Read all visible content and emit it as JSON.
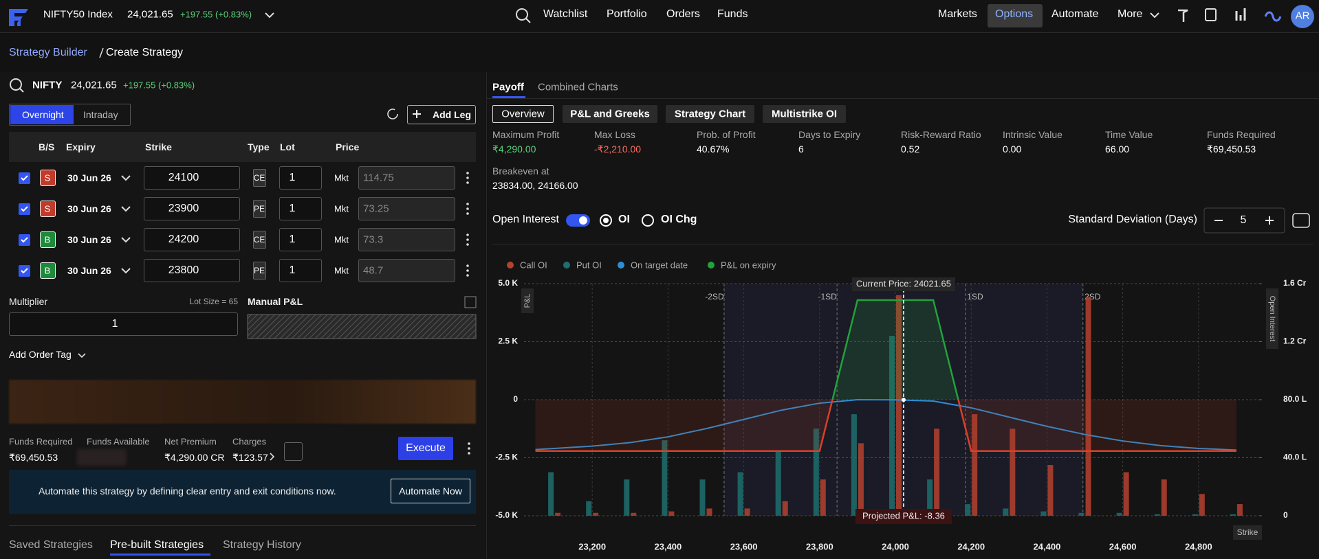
{
  "header": {
    "index_name": "NIFTY50 Index",
    "price": "24,021.65",
    "change": "+197.55 (+0.83%)",
    "nav": [
      "Watchlist",
      "Portfolio",
      "Orders",
      "Funds"
    ],
    "right_nav": [
      "Markets",
      "Options",
      "Automate",
      "More"
    ],
    "avatar": "AR"
  },
  "breadcrumb": [
    "Strategy Builder",
    "Create Strategy"
  ],
  "builder": {
    "symbol": "NIFTY",
    "price": "24,021.65",
    "change": "+197.55 (+0.83%)",
    "modes": [
      "Overnight",
      "Intraday"
    ],
    "add_leg": "Add Leg",
    "columns": [
      "B/S",
      "Expiry",
      "Strike",
      "Type",
      "Lot",
      "Price"
    ],
    "legs": [
      {
        "side": "S",
        "expiry": "30 Jun 26",
        "strike": "24100",
        "type": "CE",
        "lot": "1",
        "order": "Mkt",
        "price": "114.75"
      },
      {
        "side": "S",
        "expiry": "30 Jun 26",
        "strike": "23900",
        "type": "PE",
        "lot": "1",
        "order": "Mkt",
        "price": "73.25"
      },
      {
        "side": "B",
        "expiry": "30 Jun 26",
        "strike": "24200",
        "type": "CE",
        "lot": "1",
        "order": "Mkt",
        "price": "73.3"
      },
      {
        "side": "B",
        "expiry": "30 Jun 26",
        "strike": "23800",
        "type": "PE",
        "lot": "1",
        "order": "Mkt",
        "price": "48.7"
      }
    ],
    "multiplier_label": "Multiplier",
    "lot_size": "Lot Size = 65",
    "multiplier": "1",
    "manual_pnl": "Manual P&L",
    "order_tag": "Add Order Tag",
    "summary": [
      {
        "label": "Funds Required",
        "value": "₹69,450.53"
      },
      {
        "label": "Funds Available"
      },
      {
        "label": "Net Premium",
        "value": "₹4,290.00 CR"
      },
      {
        "label": "Charges",
        "value": "₹123.57"
      }
    ],
    "execute": "Execute",
    "automate_text": "Automate this strategy by defining clear entry and exit conditions now.",
    "automate_button": "Automate Now",
    "bottom_tabs": [
      "Saved Strategies",
      "Pre-built Strategies",
      "Strategy History"
    ]
  },
  "payoff": {
    "tabs": [
      "Payoff",
      "Combined Charts"
    ],
    "views": [
      "Overview",
      "P&L and Greeks",
      "Strategy Chart",
      "Multistrike OI"
    ],
    "metrics": [
      {
        "label": "Maximum Profit",
        "value": "₹4,290.00"
      },
      {
        "label": "Max Loss",
        "value": "-₹2,210.00"
      },
      {
        "label": "Prob. of Profit",
        "value": "40.67%"
      },
      {
        "label": "Days to Expiry",
        "value": "6"
      },
      {
        "label": "Risk-Reward Ratio",
        "value": "0.52"
      },
      {
        "label": "Intrinsic Value",
        "value": "0.00"
      },
      {
        "label": "Time Value",
        "value": "66.00"
      },
      {
        "label": "Funds Required",
        "value": "₹69,450.53"
      }
    ],
    "breakeven_label": "Breakeven at",
    "breakeven": "23834.00, 24166.00",
    "oi_label": "Open Interest",
    "oi_options": [
      "OI",
      "OI Chg"
    ],
    "sd_label": "Standard Deviation (Days)",
    "sd_days": "5"
  },
  "chart_data": {
    "type": "combo",
    "x_label": "Strike",
    "y_label": "P&L",
    "y2_label": "Open Interest",
    "xlim": [
      23020,
      24960
    ],
    "xticks": [
      {
        "value": 23200,
        "label": "23,200"
      },
      {
        "value": 23400,
        "label": "23,400"
      },
      {
        "value": 23600,
        "label": "23,600"
      },
      {
        "value": 23800,
        "label": "23,800"
      },
      {
        "value": 24000,
        "label": "24,000"
      },
      {
        "value": 24200,
        "label": "24,200"
      },
      {
        "value": 24400,
        "label": "24,400"
      },
      {
        "value": 24600,
        "label": "24,600"
      },
      {
        "value": 24800,
        "label": "24,800"
      }
    ],
    "ylim": [
      -5000,
      5000
    ],
    "yticks": [
      {
        "value": -5000,
        "label": "-5.0 K"
      },
      {
        "value": -2500,
        "label": "-2.5 K"
      },
      0,
      {
        "value": 2500,
        "label": "2.5 K"
      },
      {
        "value": 5000,
        "label": "5.0 K"
      }
    ],
    "y2lim": [
      0,
      160
    ],
    "y2ticks": [
      0,
      {
        "value": 40,
        "label": "40.0 L"
      },
      {
        "value": 80,
        "label": "80.0 L"
      },
      {
        "value": 120,
        "label": "1.2 Cr"
      },
      {
        "value": 160,
        "label": "1.6 Cr"
      }
    ],
    "series": [
      {
        "name": "Call OI",
        "color": "#b5412f",
        "axis": "y2",
        "x": [
          23100,
          23200,
          23300,
          23400,
          23500,
          23600,
          23700,
          23800,
          23900,
          24000,
          24100,
          24200,
          24300,
          24400,
          24500,
          24600,
          24700,
          24800,
          24900
        ],
        "values": [
          2,
          2,
          2,
          3,
          5,
          5,
          10,
          25,
          50,
          152,
          60,
          70,
          60,
          35,
          151,
          30,
          25,
          15,
          8
        ]
      },
      {
        "name": "Put OI",
        "color": "#1f6f6e",
        "axis": "y2",
        "x": [
          23100,
          23200,
          23300,
          23400,
          23500,
          23600,
          23700,
          23800,
          23900,
          24000,
          24100,
          24200,
          24300,
          24400,
          24500,
          24600,
          24700,
          24800,
          24900
        ],
        "values": [
          30,
          10,
          25,
          52,
          25,
          30,
          45,
          60,
          70,
          124,
          25,
          8,
          5,
          3,
          2,
          2,
          1,
          1,
          1
        ]
      },
      {
        "name": "On target date",
        "color": "#2b8fd6",
        "x": [
          23050,
          23100,
          23200,
          23300,
          23400,
          23500,
          23600,
          23700,
          23800,
          23900,
          24000,
          24100,
          24200,
          24300,
          24400,
          24500,
          24600,
          24700,
          24800,
          24900
        ],
        "values": [
          -2150,
          -2100,
          -2000,
          -1850,
          -1600,
          -1250,
          -850,
          -450,
          -150,
          0,
          -8.36,
          -60,
          -350,
          -750,
          -1150,
          -1500,
          -1780,
          -1980,
          -2100,
          -2170
        ]
      },
      {
        "name": "P&L on expiry",
        "color": "#22a23c",
        "x": [
          23050,
          23800,
          23900,
          24100,
          24200,
          24900
        ],
        "values": [
          -2210,
          -2210,
          4290,
          4290,
          -2210,
          -2210
        ]
      }
    ],
    "sd_levels": [
      {
        "label": "-2SD",
        "value": 23548
      },
      {
        "label": "-1SD",
        "value": 23846
      },
      {
        "label": "1SD",
        "value": 24185
      },
      {
        "label": "2SD",
        "value": 24495
      }
    ],
    "current_price": {
      "label": "Current Price: 24021.65",
      "value": 24021.65
    },
    "projected": {
      "label": "Projected P&L: -8.36",
      "value": -8.36
    }
  }
}
